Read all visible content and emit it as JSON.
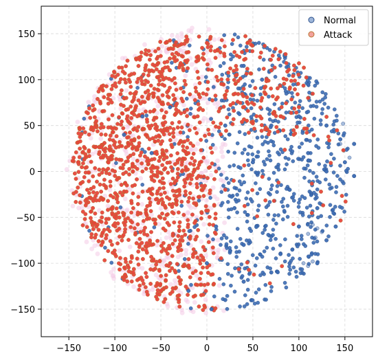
{
  "chart_data": {
    "type": "scatter",
    "title": "",
    "xlabel": "",
    "ylabel": "",
    "xlim": [
      -180,
      180
    ],
    "ylim": [
      -180,
      180
    ],
    "xticks": [
      -150,
      -100,
      -50,
      0,
      50,
      100,
      150
    ],
    "yticks": [
      150,
      100,
      50,
      0,
      -50,
      -100,
      -150
    ],
    "xtick_labels": [
      "−150",
      "−100",
      "−50",
      "0",
      "50",
      "100",
      "150"
    ],
    "ytick_labels": [
      "150",
      "100",
      "50",
      "0",
      "−50",
      "−100",
      "−150"
    ],
    "grid": true,
    "legend_position": "top-right",
    "series": [
      {
        "name": "Normal",
        "color": "#3d6db4",
        "edge_color": "#2a4f8a",
        "approx_region": {
          "x": [
            -130,
            170
          ],
          "y": [
            -160,
            130
          ]
        },
        "sample_points": [
          [
            50,
            10
          ],
          [
            90,
            -20
          ],
          [
            110,
            20
          ],
          [
            130,
            0
          ],
          [
            150,
            10
          ],
          [
            100,
            -60
          ],
          [
            120,
            -40
          ],
          [
            80,
            -90
          ],
          [
            70,
            -110
          ],
          [
            40,
            -120
          ],
          [
            20,
            -140
          ],
          [
            60,
            100
          ],
          [
            40,
            115
          ],
          [
            140,
            -60
          ],
          [
            130,
            -75
          ],
          [
            120,
            -100
          ],
          [
            160,
            -5
          ],
          [
            160,
            30
          ],
          [
            30,
            -40
          ],
          [
            10,
            -60
          ],
          [
            0,
            -100
          ],
          [
            -20,
            -130
          ],
          [
            5,
            -150
          ],
          [
            -60,
            20
          ],
          [
            -70,
            60
          ],
          [
            -90,
            40
          ],
          [
            -40,
            70
          ],
          [
            20,
            50
          ],
          [
            70,
            50
          ],
          [
            100,
            60
          ],
          [
            130,
            50
          ],
          [
            145,
            35
          ],
          [
            40,
            -80
          ],
          [
            90,
            -100
          ]
        ]
      },
      {
        "name": "Attack",
        "color": "#e8453c",
        "edge_color": "#b8722f",
        "approx_region": {
          "x": [
            -150,
            140
          ],
          "y": [
            -140,
            150
          ]
        },
        "sample_points": [
          [
            -100,
            0
          ],
          [
            -80,
            -40
          ],
          [
            -60,
            -80
          ],
          [
            -40,
            -100
          ],
          [
            -110,
            40
          ],
          [
            -90,
            80
          ],
          [
            -60,
            110
          ],
          [
            -20,
            130
          ],
          [
            0,
            140
          ],
          [
            30,
            130
          ],
          [
            70,
            110
          ],
          [
            90,
            90
          ],
          [
            100,
            70
          ],
          [
            60,
            80
          ],
          [
            -130,
            -20
          ],
          [
            -120,
            -60
          ],
          [
            -80,
            -110
          ],
          [
            -50,
            -130
          ],
          [
            -30,
            -60
          ],
          [
            -20,
            20
          ],
          [
            -10,
            60
          ],
          [
            20,
            80
          ],
          [
            -70,
            0
          ],
          [
            -50,
            30
          ],
          [
            -30,
            -20
          ],
          [
            -140,
            10
          ],
          [
            -100,
            -90
          ],
          [
            10,
            0
          ],
          [
            20,
            -20
          ],
          [
            110,
            80
          ],
          [
            40,
            90
          ],
          [
            80,
            60
          ]
        ]
      }
    ]
  }
}
